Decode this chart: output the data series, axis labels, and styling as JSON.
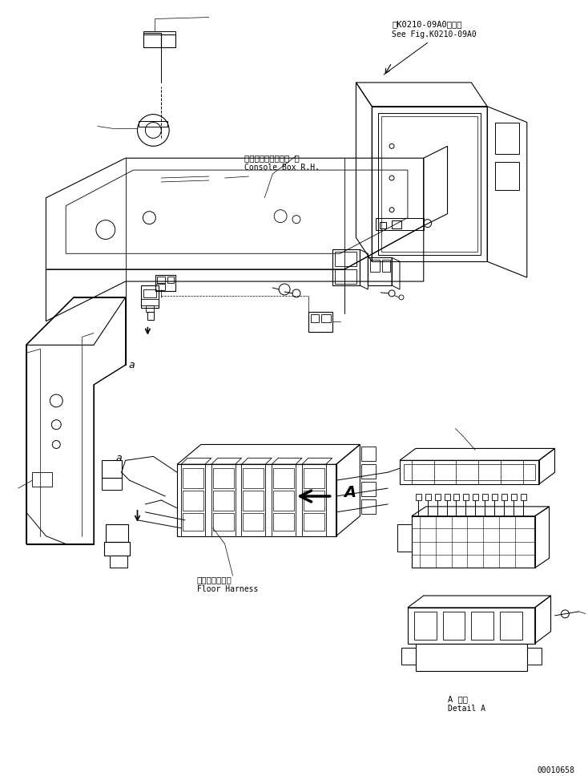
{
  "background_color": "#ffffff",
  "line_color": "#000000",
  "fig_width": 7.34,
  "fig_height": 9.73,
  "dpi": 100,
  "labels": {
    "top_ref_jp": "第K0210-09A0図参照",
    "top_ref_en": "See Fig.K0210-09A0",
    "console_jp": "コンソールボックス 右",
    "console_en": "Console Box R.H.",
    "floor_jp": "フロアハーネス",
    "floor_en": "Floor Harness",
    "detail_jp": "A 詳細",
    "detail_en": "Detail A",
    "arrow_a": "A",
    "label_a_main": "a",
    "label_a_sub": "a",
    "part_num": "00010658"
  }
}
